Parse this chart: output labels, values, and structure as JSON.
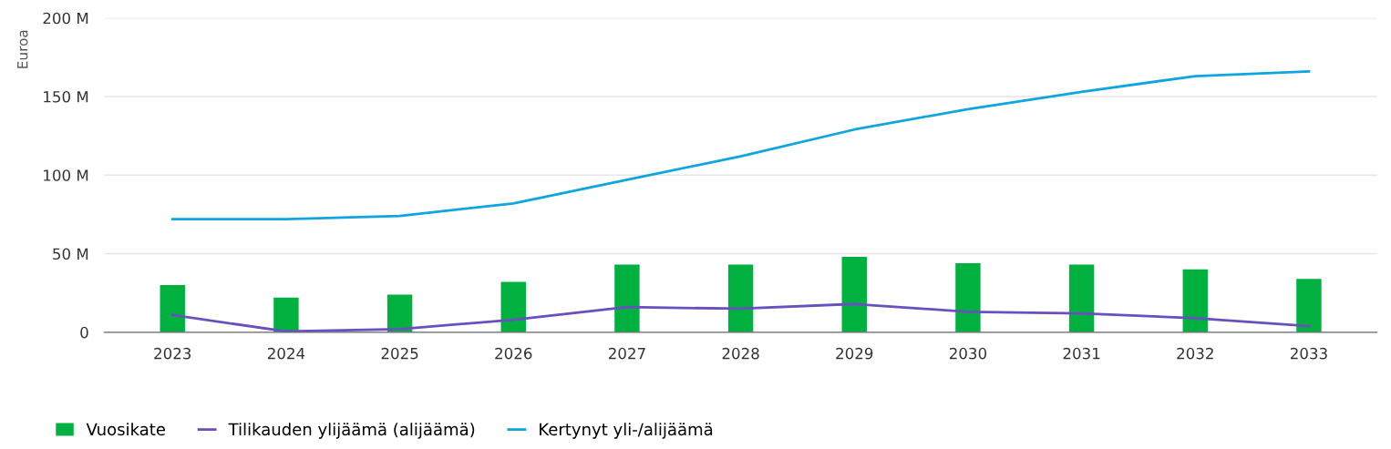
{
  "chart_data": {
    "type": "bar",
    "ylabel": "Euroa",
    "categories": [
      "2023",
      "2024",
      "2025",
      "2026",
      "2027",
      "2028",
      "2029",
      "2030",
      "2031",
      "2032",
      "2033"
    ],
    "series": [
      {
        "name": "Vuosikate",
        "color": "#00b140",
        "values": [
          30,
          22,
          24,
          32,
          43,
          43,
          48,
          44,
          43,
          40,
          34
        ]
      },
      {
        "name": "Tilikauden ylijäämä (alijäämä)",
        "type": "line",
        "color": "#6a4fbf",
        "values": [
          11,
          0.5,
          2,
          8,
          16,
          15,
          18,
          13,
          12,
          9,
          4
        ]
      },
      {
        "name": "Kertynyt yli-/alijäämä",
        "type": "line",
        "color": "#0ea5e0",
        "values": [
          72,
          72,
          74,
          82,
          97,
          112,
          129,
          142,
          153,
          163,
          166
        ]
      }
    ],
    "ylim": [
      0,
      200
    ],
    "yticks": [
      {
        "value": 0,
        "label": "0"
      },
      {
        "value": 50,
        "label": "50 M"
      },
      {
        "value": 100,
        "label": "100 M"
      },
      {
        "value": 150,
        "label": "150 M"
      },
      {
        "value": 200,
        "label": "200 M"
      }
    ],
    "grid": "y",
    "legend": "bottom left",
    "marker": "none",
    "line_style": "solid"
  }
}
